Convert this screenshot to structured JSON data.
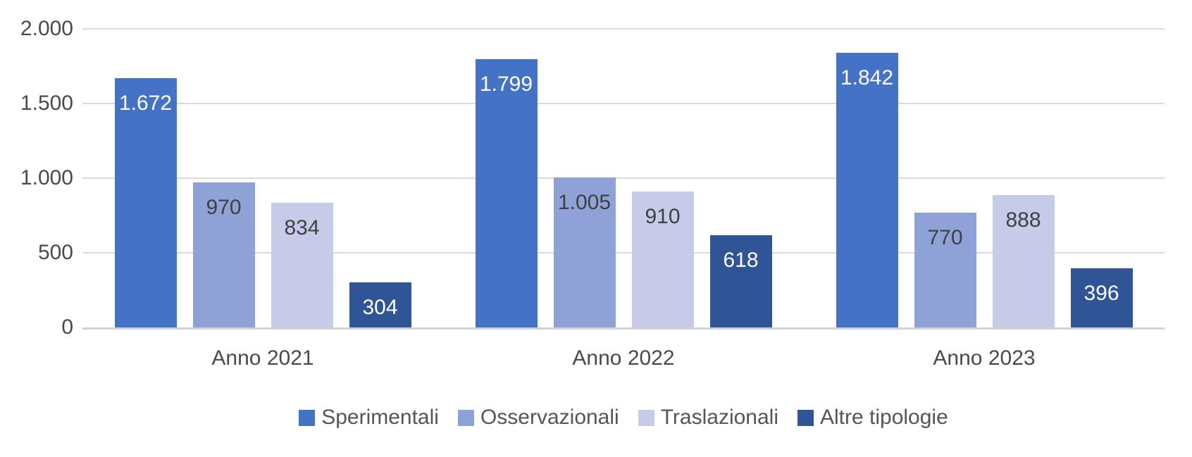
{
  "chart_data": {
    "type": "bar",
    "title": "",
    "xlabel": "",
    "ylabel": "",
    "categories": [
      "Anno 2021",
      "Anno 2022",
      "Anno 2023"
    ],
    "series": [
      {
        "name": "Sperimentali",
        "color": "#4472C4",
        "label_color": "#FFFFFF",
        "values": [
          1672,
          1799,
          1842
        ],
        "labels": [
          "1.672",
          "1.799",
          "1.842"
        ]
      },
      {
        "name": "Osservazionali",
        "color": "#8FA2D8",
        "label_color": "#404040",
        "values": [
          970,
          1005,
          770
        ],
        "labels": [
          "970",
          "1.005",
          "770"
        ]
      },
      {
        "name": "Traslazionali",
        "color": "#C5CBE9",
        "label_color": "#404040",
        "values": [
          834,
          910,
          888
        ],
        "labels": [
          "834",
          "910",
          "888"
        ]
      },
      {
        "name": "Altre tipologie",
        "color": "#2F5597",
        "label_color": "#FFFFFF",
        "values": [
          304,
          618,
          396
        ],
        "labels": [
          "304",
          "618",
          "396"
        ]
      }
    ],
    "y_axis": {
      "min": 0,
      "max": 2000,
      "step": 500,
      "tick_labels": [
        "2.000",
        "1.500",
        "1.000",
        "500",
        "0"
      ]
    },
    "grid": true,
    "legend_position": "bottom",
    "data_label_position": "inside-end"
  },
  "style": {
    "gridline_color": "#D9D9D9",
    "axis_line_color": "#D2D2D2",
    "axis_text_color": "#4A4A4A",
    "legend_text_color": "#555555",
    "background_color": "#FFFFFF"
  }
}
